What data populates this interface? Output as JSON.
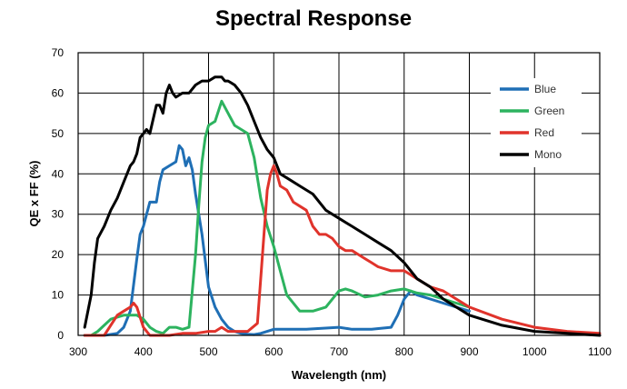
{
  "chart_data": {
    "type": "line",
    "title": "Spectral Response",
    "xlabel": "Wavelength (nm)",
    "ylabel": "QE x FF (%)",
    "xlim": [
      300,
      1100
    ],
    "ylim": [
      0,
      70
    ],
    "xticks": [
      300,
      400,
      500,
      600,
      700,
      800,
      900,
      1000,
      1100
    ],
    "yticks": [
      0,
      10,
      20,
      30,
      40,
      50,
      60,
      70
    ],
    "grid": true,
    "legend_position": "top-right",
    "series": [
      {
        "name": "Blue",
        "color": "#1f6fb5",
        "x": [
          310,
          340,
          360,
          370,
          380,
          390,
          395,
          400,
          410,
          420,
          425,
          430,
          440,
          450,
          455,
          460,
          465,
          470,
          475,
          480,
          490,
          500,
          510,
          520,
          530,
          540,
          550,
          560,
          570,
          580,
          600,
          650,
          700,
          720,
          750,
          780,
          790,
          800,
          810,
          820,
          840,
          860,
          880,
          900
        ],
        "y": [
          0,
          0,
          0.5,
          2,
          6,
          19,
          25,
          27,
          33,
          33,
          38,
          41,
          42,
          43,
          47,
          46,
          42,
          44,
          41,
          35,
          25,
          12,
          7,
          4,
          2,
          1,
          0.5,
          0.3,
          0.2,
          0.5,
          1.5,
          1.5,
          2,
          1.5,
          1.5,
          2,
          5,
          9,
          11,
          10,
          9,
          8,
          7,
          6
        ]
      },
      {
        "name": "Green",
        "color": "#2db35f",
        "x": [
          310,
          320,
          330,
          340,
          350,
          360,
          370,
          380,
          390,
          395,
          400,
          410,
          420,
          430,
          440,
          450,
          460,
          470,
          480,
          485,
          490,
          495,
          500,
          510,
          520,
          530,
          540,
          560,
          570,
          580,
          590,
          600,
          610,
          620,
          640,
          660,
          680,
          700,
          710,
          720,
          740,
          760,
          780,
          800,
          820,
          840,
          860,
          880,
          900
        ],
        "y": [
          0,
          0,
          1,
          2.5,
          4,
          4.5,
          5,
          5,
          5,
          4.5,
          4,
          2,
          1,
          0.5,
          2,
          2,
          1.5,
          2,
          20,
          32,
          43,
          49,
          52,
          53,
          58,
          55,
          52,
          50,
          44,
          34,
          27,
          22,
          16,
          10,
          6,
          6,
          7,
          11,
          11.5,
          11,
          9.5,
          10,
          11,
          11.5,
          10.5,
          10,
          9,
          8,
          7
        ]
      },
      {
        "name": "Red",
        "color": "#e0332b",
        "x": [
          310,
          340,
          360,
          370,
          380,
          385,
          390,
          400,
          410,
          420,
          440,
          460,
          480,
          500,
          510,
          520,
          530,
          560,
          575,
          585,
          590,
          595,
          600,
          605,
          610,
          620,
          630,
          640,
          650,
          660,
          670,
          680,
          690,
          700,
          710,
          720,
          730,
          740,
          750,
          760,
          780,
          800,
          820,
          840,
          860,
          880,
          900,
          950,
          1000,
          1050,
          1100
        ],
        "y": [
          0,
          0,
          5,
          6,
          7,
          8,
          7,
          2,
          0,
          0,
          0,
          0.5,
          0.5,
          1,
          1,
          2,
          1,
          1,
          3,
          25,
          36,
          40,
          42,
          40,
          37,
          36,
          33,
          32,
          31,
          27,
          25,
          25,
          24,
          22,
          21,
          21,
          20,
          19,
          18,
          17,
          16,
          16,
          14,
          12,
          11,
          9,
          7,
          4,
          2,
          1,
          0.5
        ]
      },
      {
        "name": "Mono",
        "color": "#000000",
        "x": [
          310,
          320,
          325,
          330,
          340,
          350,
          360,
          370,
          380,
          385,
          390,
          395,
          400,
          405,
          410,
          420,
          425,
          430,
          435,
          440,
          445,
          450,
          460,
          470,
          480,
          490,
          500,
          510,
          520,
          525,
          530,
          540,
          550,
          560,
          570,
          580,
          590,
          600,
          610,
          620,
          640,
          660,
          680,
          700,
          720,
          740,
          760,
          780,
          800,
          820,
          840,
          860,
          880,
          900,
          950,
          1000,
          1050,
          1100
        ],
        "y": [
          2,
          10,
          18,
          24,
          27,
          31,
          34,
          38,
          42,
          43,
          45,
          49,
          50,
          51,
          50,
          57,
          57,
          55,
          60,
          62,
          60,
          59,
          60,
          60,
          62,
          63,
          63,
          64,
          64,
          63,
          63,
          62,
          60,
          57,
          53,
          49,
          46,
          44,
          40,
          39,
          37,
          35,
          31,
          29,
          27,
          25,
          23,
          21,
          18,
          14,
          12,
          9,
          7,
          5,
          2.5,
          1,
          0.5,
          0
        ]
      }
    ]
  }
}
